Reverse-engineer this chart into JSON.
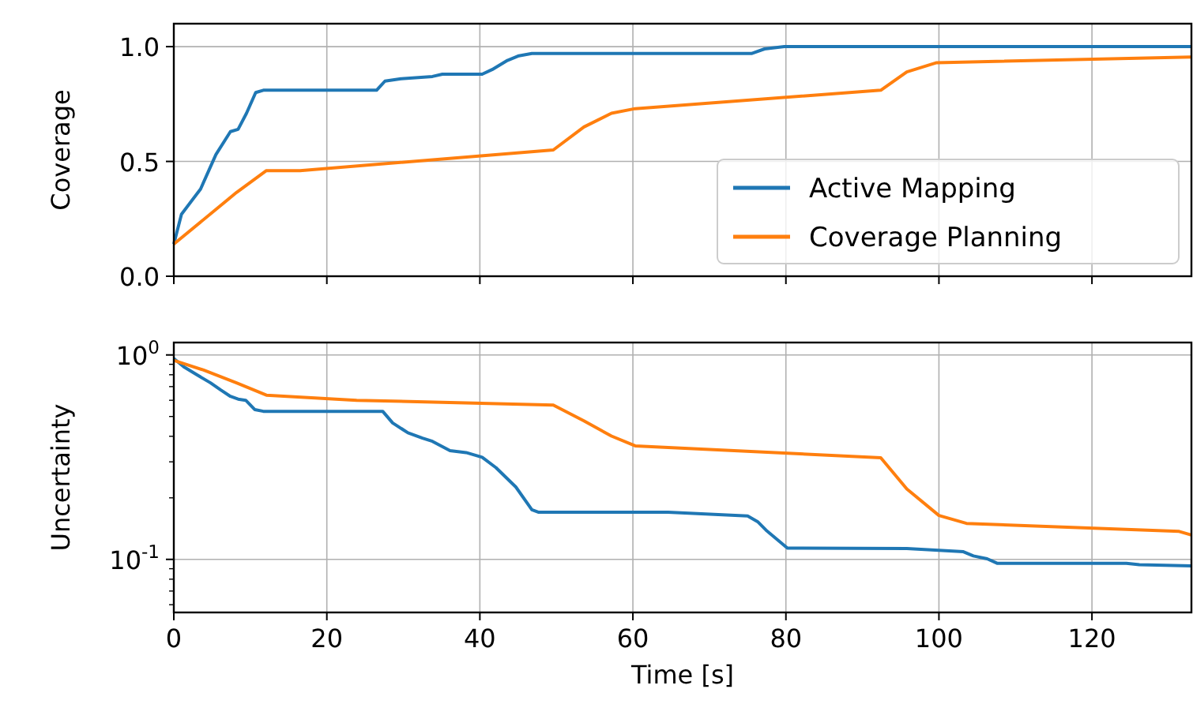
{
  "chart_data": [
    {
      "type": "line",
      "ylabel": "Coverage",
      "xlim": [
        0,
        133
      ],
      "xticks": [
        {
          "value": 0,
          "label": null
        },
        {
          "value": 20,
          "label": null
        },
        {
          "value": 40,
          "label": null
        },
        {
          "value": 60,
          "label": null
        },
        {
          "value": 80,
          "label": null
        },
        {
          "value": 100,
          "label": null
        },
        {
          "value": 120,
          "label": null
        }
      ],
      "ylim": [
        0,
        1.1
      ],
      "yticks": [
        {
          "value": 0,
          "label": "0.0"
        },
        {
          "value": 0.5,
          "label": "0.5"
        },
        {
          "value": 1,
          "label": "1.0"
        }
      ],
      "grid": true,
      "legend": "bottom right",
      "tick_labels": "y",
      "series": [
        {
          "name": "Active Mapping",
          "color": "#1f77b4",
          "x": [
            0,
            1.0,
            3.5,
            5.5,
            7.4,
            8.4,
            9.5,
            10.7,
            11.7,
            26.5,
            27.6,
            29.7,
            33.8,
            35.1,
            40.3,
            41.6,
            43.6,
            45.1,
            46.8,
            75.5,
            77.2,
            79.8,
            124.5,
            126.2,
            133
          ],
          "values": [
            0.14,
            0.27,
            0.38,
            0.53,
            0.63,
            0.64,
            0.71,
            0.8,
            0.81,
            0.81,
            0.85,
            0.86,
            0.87,
            0.88,
            0.88,
            0.9,
            0.94,
            0.96,
            0.97,
            0.97,
            0.99,
            1.0,
            1.0,
            1.0,
            1.0
          ]
        },
        {
          "name": "Coverage Planning",
          "color": "#ff7f0e",
          "x": [
            0,
            8.2,
            12.1,
            16.5,
            49.6,
            53.6,
            57.2,
            60.3,
            92.4,
            95.8,
            99.7,
            133
          ],
          "values": [
            0.14,
            0.365,
            0.46,
            0.46,
            0.55,
            0.65,
            0.71,
            0.73,
            0.81,
            0.89,
            0.93,
            0.955
          ]
        }
      ]
    },
    {
      "type": "line",
      "xlabel": "Time [s]",
      "ylabel": "Uncertainty",
      "log": "y",
      "xlim": [
        0,
        133
      ],
      "xticks": [
        0,
        20,
        40,
        60,
        80,
        100,
        120
      ],
      "ylim": [
        0.055,
        1.15
      ],
      "yticks": [
        {
          "value": 1,
          "label": "10$^{0}$"
        },
        {
          "value": 0.1,
          "label": "10$^{-1}$"
        },
        {
          "value": 0.06,
          "label": null
        },
        {
          "value": 0.07,
          "label": null
        },
        {
          "value": 0.08,
          "label": null
        },
        {
          "value": 0.09,
          "label": null
        },
        {
          "value": 0.2,
          "label": null
        },
        {
          "value": 0.3,
          "label": null
        },
        {
          "value": 0.4,
          "label": null
        },
        {
          "value": 0.5,
          "label": null
        },
        {
          "value": 0.6,
          "label": null
        },
        {
          "value": 0.7,
          "label": null
        },
        {
          "value": 0.8,
          "label": null
        },
        {
          "value": 0.9,
          "label": null
        }
      ],
      "grid": true,
      "series": [
        {
          "color": "#1f77b4",
          "x": [
            0,
            1.3,
            3.0,
            4.8,
            6.1,
            7.4,
            8.4,
            9.4,
            10.6,
            11.7,
            27.3,
            28.6,
            30.6,
            32.5,
            33.8,
            36.1,
            38.2,
            40.3,
            42.1,
            44.7,
            46.8,
            47.7,
            64.6,
            75.0,
            76.3,
            77.4,
            80.2,
            95.8,
            103.2,
            104.5,
            106.3,
            107.6,
            124.5,
            126.2,
            133
          ],
          "values": [
            0.96,
            0.875,
            0.8,
            0.73,
            0.675,
            0.627,
            0.608,
            0.6,
            0.54,
            0.53,
            0.53,
            0.465,
            0.416,
            0.392,
            0.378,
            0.34,
            0.333,
            0.316,
            0.281,
            0.226,
            0.175,
            0.17,
            0.17,
            0.163,
            0.153,
            0.139,
            0.1135,
            0.113,
            0.109,
            0.104,
            0.1007,
            0.0957,
            0.0957,
            0.0942,
            0.0929
          ]
        },
        {
          "color": "#ff7f0e",
          "x": [
            0,
            3.9,
            8.2,
            12.1,
            23.9,
            49.6,
            53.6,
            57.2,
            60.3,
            92.4,
            95.8,
            100.0,
            103.6,
            131.4,
            133
          ],
          "values": [
            0.94,
            0.843,
            0.73,
            0.636,
            0.6,
            0.569,
            0.476,
            0.401,
            0.359,
            0.314,
            0.221,
            0.164,
            0.15,
            0.137,
            0.1315
          ]
        }
      ]
    }
  ]
}
